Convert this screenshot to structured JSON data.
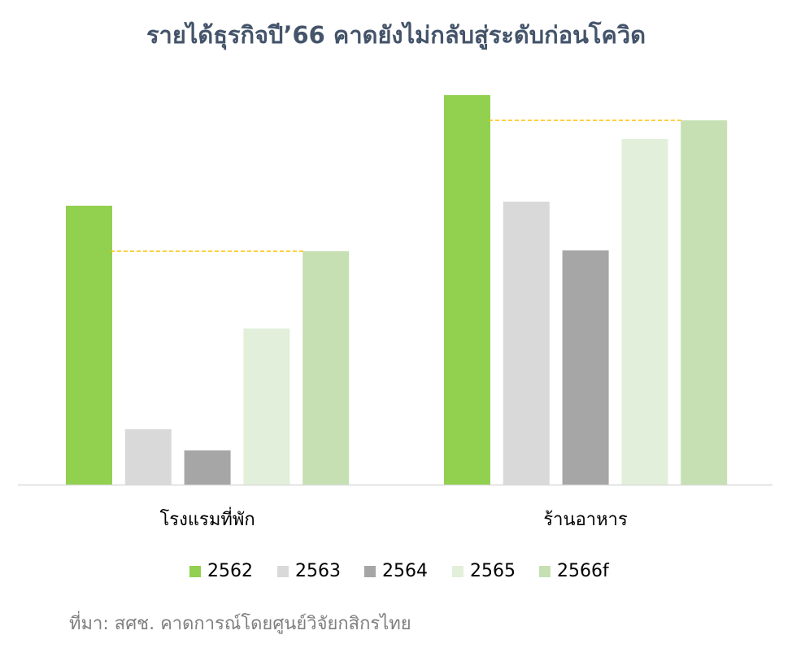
{
  "chart_data": {
    "type": "bar",
    "title": "รายได้ธุรกิจปี’66 คาดยังไม่กลับสู่ระดับก่อนโควิด",
    "categories": [
      "โรงแรมที่พัก",
      "ร้านอาหาร"
    ],
    "series": [
      {
        "name": "2562",
        "color": "#92d050",
        "values": [
          343,
          479
        ]
      },
      {
        "name": "2563",
        "color": "#d9d9d9",
        "values": [
          68,
          348
        ]
      },
      {
        "name": "2564",
        "color": "#a6a6a6",
        "values": [
          42,
          288
        ]
      },
      {
        "name": "2565",
        "color": "#e2efda",
        "values": [
          192,
          425
        ]
      },
      {
        "name": "2566f",
        "color": "#c6e0b4",
        "values": [
          287,
          448
        ]
      }
    ],
    "ylim": [
      0,
      500
    ],
    "reference_line_color": "#ffc000",
    "source": "ที่มา: สศช. คาดการณ์โดยศูนย์วิจัยกสิกรไทย"
  }
}
